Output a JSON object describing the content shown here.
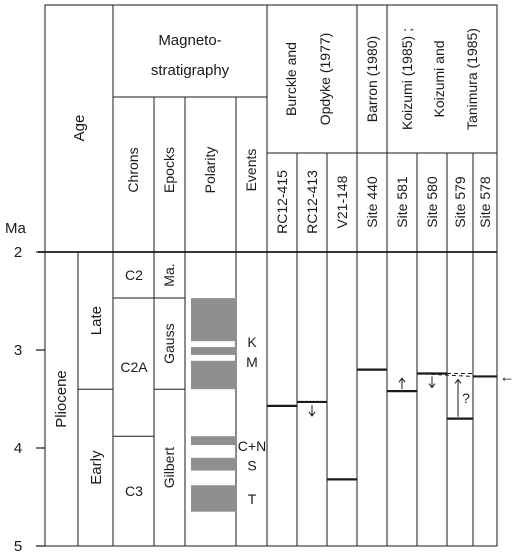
{
  "header": {
    "age": "Age",
    "magnetostratigraphy": [
      "Magneto-",
      "stratigraphy"
    ],
    "chrons": "Chrons",
    "epocks": "Epocks",
    "polarity": "Polarity",
    "events": "Events",
    "ma": "Ma"
  },
  "sources": {
    "burckle": [
      "Burckle and",
      "Opdyke (1977)"
    ],
    "barron": "Barron (1980)",
    "koizumi": [
      "Koizumi (1985) ;",
      "Koizumi and",
      "Tanimura (1985)"
    ]
  },
  "sites": [
    "RC12-415",
    "RC12-413",
    "V21-148",
    "Site 440",
    "Site 581",
    "Site 580",
    "Site 579",
    "Site 578"
  ],
  "axis": {
    "ticks": [
      "2",
      "3",
      "4",
      "5"
    ],
    "range_ma": [
      2,
      5
    ]
  },
  "age": {
    "series": "Pliocene",
    "subseries": [
      {
        "label": "Late",
        "from": 2.0,
        "to": 3.4
      },
      {
        "label": "Early",
        "from": 3.4,
        "to": 5.0
      }
    ]
  },
  "chrons": [
    {
      "label": "C2",
      "from": 2.0,
      "to": 2.47
    },
    {
      "label": "C2A",
      "from": 2.47,
      "to": 3.88
    },
    {
      "label": "C3",
      "from": 3.88,
      "to": 5.0
    }
  ],
  "epocks": [
    {
      "label": "Ma.",
      "from": 2.0,
      "to": 2.47
    },
    {
      "label": "Gauss",
      "from": 2.47,
      "to": 3.4
    },
    {
      "label": "Gilbert",
      "from": 3.4,
      "to": 5.0
    }
  ],
  "polarity_normal": [
    [
      2.47,
      2.91
    ],
    [
      2.97,
      3.05
    ],
    [
      3.11,
      3.4
    ],
    [
      3.88,
      3.97
    ],
    [
      4.1,
      4.23
    ],
    [
      4.38,
      4.65
    ]
  ],
  "events": [
    {
      "label": "K",
      "ma": 2.92
    },
    {
      "label": "M",
      "ma": 3.12
    },
    {
      "label": "C+N",
      "ma": 3.98
    },
    {
      "label": "S",
      "ma": 4.18
    },
    {
      "label": "T",
      "ma": 4.52
    }
  ],
  "horizons": [
    {
      "site": 0,
      "ma": 3.57,
      "arrow": "none"
    },
    {
      "site": 1,
      "ma": 3.53,
      "arrow": "down"
    },
    {
      "site": 2,
      "ma": 4.32,
      "arrow": "none"
    },
    {
      "site": 3,
      "ma": 3.2,
      "arrow": "none"
    },
    {
      "site": 4,
      "ma": 3.42,
      "arrow": "up"
    },
    {
      "site": 5,
      "ma": 3.24,
      "arrow": "down"
    },
    {
      "site": 6,
      "ma": 3.7,
      "arrow": "up-question",
      "label": "?"
    },
    {
      "site": 7,
      "ma": 3.27,
      "arrow": "none"
    }
  ],
  "correlation": {
    "from_ma": 3.24,
    "to_ma": 3.27,
    "arrow_label": "←"
  },
  "colors": {
    "polarity": "#8f8f8f",
    "ink": "#1a1a1a"
  }
}
